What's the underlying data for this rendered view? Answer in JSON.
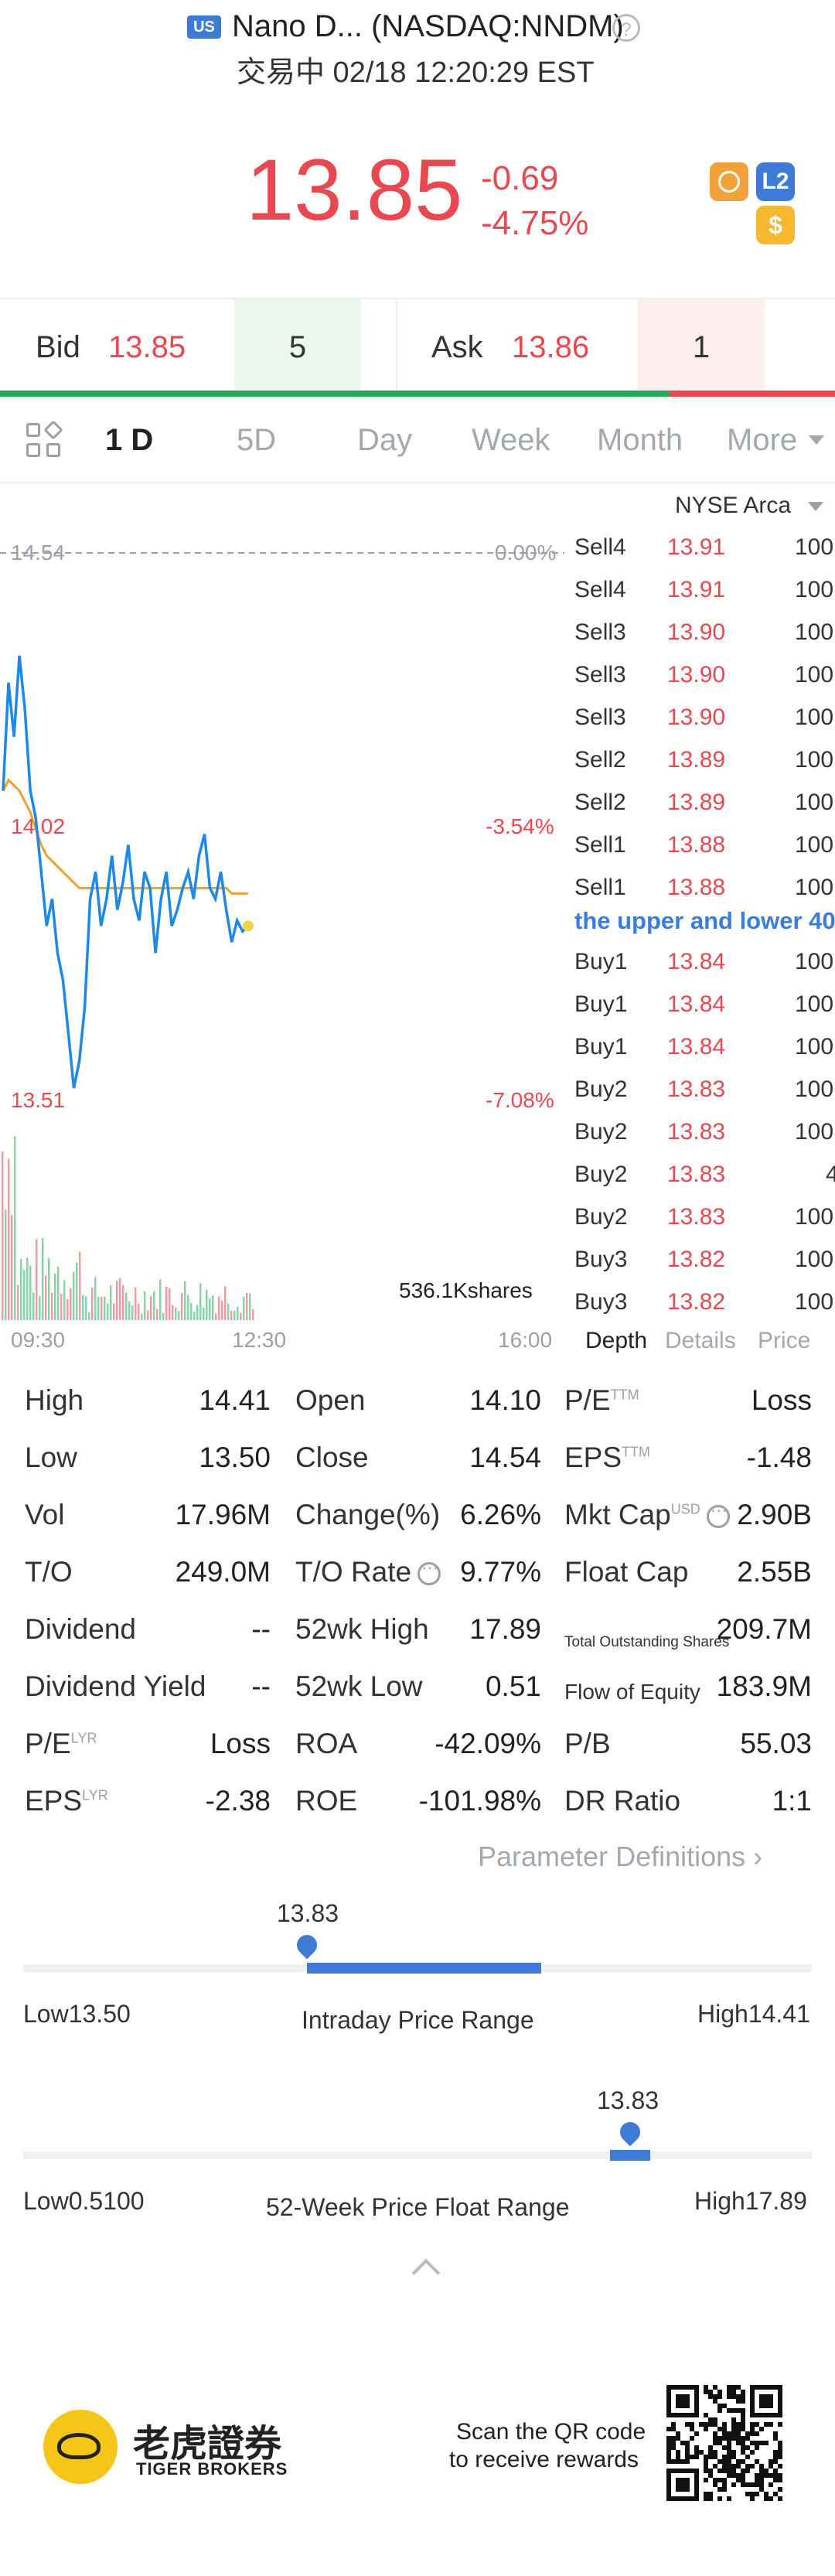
{
  "header": {
    "market_badge": "US",
    "title": "Nano D... (NASDAQ:NNDM)",
    "status": "交易中 02/18 12:20:29 EST",
    "price": "13.85",
    "change": "-0.69",
    "change_pct": "-4.75%",
    "icons": [
      "no-ads-icon",
      "level2-icon",
      "dollar-icon"
    ],
    "l2_label": "L2",
    "dollar_label": "$"
  },
  "bidask": {
    "bid_label": "Bid",
    "bid_price": "13.85",
    "bid_volume": "5",
    "ask_label": "Ask",
    "ask_price": "13.86",
    "ask_volume": "1"
  },
  "tabs": [
    "1 D",
    "5D",
    "Day",
    "Week",
    "Month",
    "More"
  ],
  "active_tab": "1 D",
  "chart": {
    "left_top_label": "14.54",
    "right_top_label": "0.00%",
    "left_mid_label": "14.02",
    "right_mid_label": "-3.54%",
    "left_low_label": "13.51",
    "right_low_label": "-7.08%",
    "volume_label": "536.1Kshares",
    "time_start": "09:30",
    "time_mid": "12:30",
    "time_end": "16:00"
  },
  "chart_data": {
    "type": "line",
    "ylim": [
      13.51,
      14.54
    ],
    "x_ticks": [
      "09:30",
      "12:30",
      "16:00"
    ],
    "series": [
      {
        "values": [
          14.1,
          14.3,
          14.2,
          14.35,
          14.25,
          14.1,
          14.05,
          13.95,
          13.85,
          13.9,
          13.8,
          13.75,
          13.65,
          13.55,
          13.6,
          13.7,
          13.9,
          13.95,
          13.85,
          13.9,
          13.98,
          13.88,
          13.93,
          14.0,
          13.9,
          13.86,
          13.95,
          13.92,
          13.8,
          13.9,
          13.95,
          13.85,
          13.88,
          13.92,
          13.95,
          13.9,
          13.98,
          14.02,
          13.92,
          13.9,
          13.95,
          13.88,
          13.82,
          13.86,
          13.84,
          13.85
        ]
      },
      {
        "values": [
          14.1,
          14.12,
          14.11,
          14.1,
          14.08,
          14.06,
          14.03,
          14.0,
          13.98,
          13.97,
          13.96,
          13.95,
          13.94,
          13.93,
          13.92,
          13.92,
          13.92,
          13.92,
          13.92,
          13.92,
          13.92,
          13.92,
          13.92,
          13.92,
          13.92,
          13.92,
          13.92,
          13.92,
          13.92,
          13.92,
          13.92,
          13.92,
          13.92,
          13.92,
          13.92,
          13.92,
          13.92,
          13.92,
          13.92,
          13.92,
          13.92,
          13.92,
          13.91,
          13.91,
          13.91,
          13.91
        ]
      }
    ]
  },
  "depth": {
    "exchange": "NYSE Arca",
    "rows": [
      {
        "label": "Sell4",
        "price": "13.91",
        "volume": "100"
      },
      {
        "label": "Sell4",
        "price": "13.91",
        "volume": "100"
      },
      {
        "label": "Sell3",
        "price": "13.90",
        "volume": "100"
      },
      {
        "label": "Sell3",
        "price": "13.90",
        "volume": "100"
      },
      {
        "label": "Sell3",
        "price": "13.90",
        "volume": "100"
      },
      {
        "label": "Sell2",
        "price": "13.89",
        "volume": "100"
      },
      {
        "label": "Sell2",
        "price": "13.89",
        "volume": "100"
      },
      {
        "label": "Sell1",
        "price": "13.88",
        "volume": "100"
      },
      {
        "label": "Sell1",
        "price": "13.88",
        "volume": "100"
      }
    ],
    "note": "the upper and lower 40",
    "buy_rows": [
      {
        "label": "Buy1",
        "price": "13.84",
        "volume": "100"
      },
      {
        "label": "Buy1",
        "price": "13.84",
        "volume": "100"
      },
      {
        "label": "Buy1",
        "price": "13.84",
        "volume": "100"
      },
      {
        "label": "Buy2",
        "price": "13.83",
        "volume": "100"
      },
      {
        "label": "Buy2",
        "price": "13.83",
        "volume": "100"
      },
      {
        "label": "Buy2",
        "price": "13.83",
        "volume": "4"
      },
      {
        "label": "Buy2",
        "price": "13.83",
        "volume": "100"
      },
      {
        "label": "Buy3",
        "price": "13.82",
        "volume": "100"
      },
      {
        "label": "Buy3",
        "price": "13.82",
        "volume": "100"
      }
    ],
    "tabs": [
      "Depth",
      "Details",
      "Price"
    ]
  },
  "stats": {
    "col1": [
      {
        "k": "High",
        "v": "14.41"
      },
      {
        "k": "Low",
        "v": "13.50"
      },
      {
        "k": "Vol",
        "v": "17.96M"
      },
      {
        "k": "T/O",
        "v": "249.0M"
      },
      {
        "k": "Dividend",
        "v": "--"
      },
      {
        "k": "Dividend Yield",
        "v": "--"
      },
      {
        "k": "P/E",
        "sup": "LYR",
        "v": "Loss"
      },
      {
        "k": "EPS",
        "sup": "LYR",
        "v": "-2.38"
      }
    ],
    "col2": [
      {
        "k": "Open",
        "v": "14.10"
      },
      {
        "k": "Close",
        "v": "14.54"
      },
      {
        "k": "Change(%)",
        "v": "6.26%"
      },
      {
        "k": "T/O Rate",
        "v": "9.77%"
      },
      {
        "k": "52wk High",
        "v": "17.89"
      },
      {
        "k": "52wk Low",
        "v": "0.51"
      },
      {
        "k": "ROA",
        "v": "-42.09%"
      },
      {
        "k": "ROE",
        "v": "-101.98%"
      }
    ],
    "col3": [
      {
        "k": "P/E",
        "sup": "TTM",
        "v": "Loss"
      },
      {
        "k": "EPS",
        "sup": "TTM",
        "v": "-1.48"
      },
      {
        "k": "Mkt Cap",
        "sup": "USD",
        "v": "2.90B"
      },
      {
        "k": "Float Cap",
        "v": "2.55B"
      },
      {
        "k": "Total Outstanding Shares",
        "v": "209.7M"
      },
      {
        "k": "Flow of Equity",
        "v": "183.9M"
      },
      {
        "k": "P/B",
        "v": "55.03"
      },
      {
        "k": "DR Ratio",
        "v": "1:1"
      }
    ],
    "param_definitions": "Parameter Definitions"
  },
  "intraday_range": {
    "current": "13.83",
    "title": "Intraday Price Range",
    "low_label": "Low13.50",
    "high_label": "High14.41",
    "current_fraction": 0.36
  },
  "week52_range": {
    "current": "13.83",
    "title": "52-Week Price Float Range",
    "low_label": "Low0.5100",
    "high_label": "High17.89",
    "current_fraction": 0.77
  },
  "footer": {
    "brand_cn": "老虎證券",
    "brand_en": "TIGER BROKERS",
    "scan_line1": "Scan the QR code",
    "scan_line2": "to receive rewards"
  }
}
